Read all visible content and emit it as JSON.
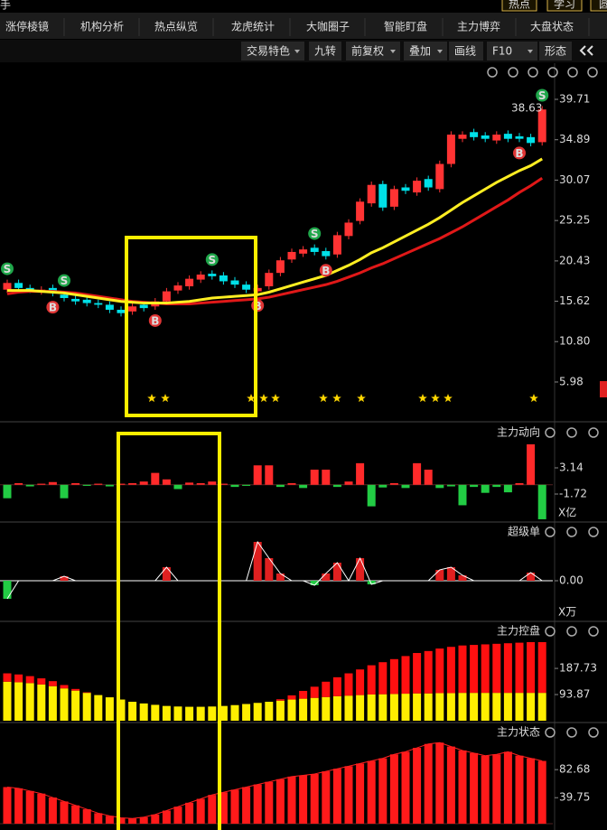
{
  "header": {
    "corner": "手",
    "buttons": [
      "热点",
      "学习",
      "圆"
    ],
    "tabs": [
      "涨停棱镜",
      "机构分析",
      "热点纵览",
      "龙虎统计",
      "大咖圈子",
      "智能盯盘",
      "主力博弈",
      "大盘状态"
    ]
  },
  "toolbar": {
    "items": [
      "交易特色",
      "九转",
      "前复权",
      "叠加",
      "画线",
      "F10",
      "形态"
    ]
  },
  "chart_data": [
    {
      "type": "candlestick",
      "up_color": "#ff3333",
      "down_color": "#00e0e8",
      "open": [
        17.0,
        17.8,
        17.2,
        16.8,
        17.2,
        16.4,
        15.9,
        15.8,
        15.4,
        15.2,
        14.6,
        14.4,
        15.2,
        15.0,
        15.6,
        16.9,
        17.4,
        18.2,
        18.9,
        18.7,
        18.1,
        17.6,
        16.8,
        17.4,
        19.0,
        20.6,
        21.3,
        22.0,
        21.6,
        21.2,
        23.4,
        25.2,
        27.3,
        29.6,
        26.9,
        29.2,
        28.6,
        30.2,
        29.0,
        32.0,
        35.0,
        35.8,
        35.4,
        34.8,
        35.6,
        35.3,
        35.2,
        34.6
      ],
      "high": [
        18.2,
        18.2,
        17.6,
        17.4,
        17.6,
        16.8,
        16.3,
        16.2,
        15.8,
        15.6,
        15.0,
        15.4,
        15.6,
        16.0,
        17.2,
        17.9,
        18.7,
        19.2,
        19.3,
        19.1,
        18.5,
        18.0,
        17.6,
        19.4,
        20.9,
        21.9,
        22.2,
        22.4,
        22.0,
        23.9,
        25.4,
        27.9,
        29.9,
        30.0,
        29.4,
        29.6,
        30.4,
        30.6,
        32.4,
        35.9,
        35.9,
        36.2,
        35.8,
        35.9,
        36.0,
        35.7,
        35.6,
        38.9
      ],
      "low": [
        16.6,
        16.8,
        16.6,
        16.4,
        16.2,
        15.6,
        15.2,
        15.0,
        14.8,
        14.2,
        13.8,
        14.0,
        14.4,
        14.6,
        15.2,
        16.5,
        17.0,
        17.8,
        18.2,
        17.6,
        17.2,
        16.6,
        16.4,
        17.0,
        18.6,
        20.2,
        20.9,
        21.1,
        20.6,
        20.8,
        23.0,
        24.8,
        26.9,
        26.4,
        26.5,
        28.4,
        28.2,
        28.8,
        28.6,
        31.6,
        34.6,
        34.8,
        34.6,
        34.4,
        34.6,
        34.6,
        34.1,
        34.2
      ],
      "close": [
        17.8,
        17.2,
        17.0,
        17.0,
        16.6,
        16.0,
        15.6,
        15.4,
        15.2,
        14.6,
        14.2,
        15.0,
        14.8,
        15.6,
        16.8,
        17.5,
        18.3,
        18.8,
        18.6,
        18.0,
        17.6,
        17.0,
        17.2,
        19.0,
        20.5,
        21.5,
        21.8,
        21.5,
        21.0,
        23.5,
        25.0,
        27.5,
        29.5,
        26.8,
        29.0,
        28.8,
        30.0,
        29.2,
        32.0,
        35.5,
        35.5,
        35.2,
        35.0,
        35.5,
        35.0,
        35.0,
        34.5,
        38.5
      ],
      "series": [
        {
          "color": "#e01818",
          "values": [
            16.5,
            16.7,
            16.8,
            16.8,
            16.8,
            16.7,
            16.6,
            16.4,
            16.2,
            16.0,
            15.8,
            15.6,
            15.5,
            15.4,
            15.3,
            15.3,
            15.3,
            15.4,
            15.5,
            15.6,
            15.7,
            15.8,
            15.9,
            16.1,
            16.4,
            16.7,
            17.0,
            17.3,
            17.6,
            18.0,
            18.5,
            19.0,
            19.6,
            20.1,
            20.7,
            21.3,
            21.9,
            22.5,
            23.1,
            23.8,
            24.5,
            25.3,
            26.1,
            26.9,
            27.7,
            28.6,
            29.4,
            30.3
          ]
        },
        {
          "color": "#ffee22",
          "values": [
            16.9,
            16.9,
            16.9,
            16.8,
            16.7,
            16.6,
            16.4,
            16.2,
            16.0,
            15.8,
            15.6,
            15.5,
            15.4,
            15.4,
            15.4,
            15.5,
            15.6,
            15.8,
            16.0,
            16.1,
            16.2,
            16.3,
            16.4,
            16.7,
            17.1,
            17.5,
            17.9,
            18.3,
            18.7,
            19.3,
            19.9,
            20.6,
            21.4,
            22.0,
            22.7,
            23.4,
            24.1,
            24.8,
            25.6,
            26.5,
            27.4,
            28.2,
            29.0,
            29.8,
            30.5,
            31.2,
            31.8,
            32.6
          ]
        }
      ],
      "signals": [
        {
          "index": 0,
          "label": "S"
        },
        {
          "index": 4,
          "label": "B"
        },
        {
          "index": 5,
          "label": "S"
        },
        {
          "index": 13,
          "label": "B"
        },
        {
          "index": 18,
          "label": "S"
        },
        {
          "index": 22,
          "label": "B"
        },
        {
          "index": 27,
          "label": "S"
        },
        {
          "index": 28,
          "label": "B"
        },
        {
          "index": 45,
          "label": "B"
        },
        {
          "index": 47,
          "label": "S"
        }
      ],
      "annotations": [
        {
          "text": "38.63"
        }
      ],
      "ylim": [
        1.45,
        44.02
      ],
      "yticks": [
        39.71,
        34.89,
        30.07,
        25.25,
        20.43,
        15.62,
        {
          "value": 10.8,
          "label": "10.80"
        },
        5.98
      ]
    },
    {
      "type": "bar",
      "title": "主力动向",
      "unit": "X亿",
      "up_color": "#ff2a2a",
      "down_color": "#22cc44",
      "values": [
        -2.5,
        0.3,
        -0.3,
        0.2,
        0.5,
        -2.5,
        0.3,
        -0.2,
        0.2,
        -0.3,
        0.2,
        0.3,
        0.6,
        2.2,
        1.0,
        -0.8,
        0.4,
        0.3,
        0.6,
        0.2,
        -0.4,
        -0.2,
        3.6,
        3.6,
        -0.4,
        0.3,
        -0.6,
        2.8,
        2.8,
        -0.4,
        0.6,
        4.0,
        -4.0,
        -0.5,
        0.3,
        -0.6,
        4.0,
        2.8,
        -0.6,
        -0.3,
        -3.8,
        -0.4,
        -1.5,
        -0.4,
        -1.4,
        0.3,
        7.5,
        -6.4
      ],
      "ylim": [
        -6.91,
        11.18
      ],
      "yticks": [
        3.14,
        -1.72
      ]
    },
    {
      "type": "bar",
      "title": "超级单",
      "unit": "X万",
      "up_color": "#e02020",
      "down_color": "#22cc44",
      "line_color": "#ffffff",
      "values": [
        -2.0,
        0,
        0,
        0,
        0,
        0.5,
        0,
        0,
        0,
        0,
        0,
        0,
        0,
        0,
        1.5,
        0,
        0,
        0,
        0,
        0,
        0,
        0,
        4.3,
        2.5,
        0.8,
        0,
        0,
        -0.5,
        0.8,
        2.0,
        0,
        2.5,
        -0.4,
        0,
        0,
        0,
        0,
        0,
        1.2,
        1.5,
        0.6,
        0,
        0,
        0,
        0,
        0,
        0.9,
        0
      ],
      "ylim": [
        -4.5,
        6.3
      ],
      "yticks": [
        {
          "value": 0,
          "label": "0.00"
        }
      ]
    },
    {
      "type": "stacked_bar",
      "title": "主力控盘",
      "series": [
        {
          "color": "#ffee00",
          "values": [
            140,
            138,
            135,
            130,
            124,
            116,
            108,
            100,
            92,
            84,
            76,
            68,
            62,
            57,
            53,
            51,
            50,
            50,
            51,
            53,
            56,
            60,
            64,
            68,
            72,
            76,
            79,
            82,
            85,
            88,
            90,
            92,
            94,
            95,
            96,
            97,
            98,
            98,
            99,
            99,
            100,
            100,
            100,
            100,
            100,
            100,
            100,
            100
          ]
        },
        {
          "color": "#ff1010",
          "values": [
            30,
            28,
            25,
            22,
            18,
            12,
            6,
            2,
            0,
            0,
            0,
            0,
            0,
            0,
            0,
            0,
            0,
            0,
            0,
            0,
            0,
            0,
            0,
            0,
            5,
            15,
            28,
            40,
            55,
            68,
            80,
            92,
            105,
            115,
            125,
            135,
            145,
            152,
            160,
            166,
            170,
            172,
            174,
            176,
            178,
            180,
            182,
            182
          ]
        }
      ],
      "ylim": [
        0,
        350
      ],
      "yticks": [
        187.73,
        93.87
      ]
    },
    {
      "type": "bar",
      "title": "主力状态",
      "up_color": "#ff1a1a",
      "down_color": "#22cc44",
      "line_color": "#ff2020",
      "values": [
        56,
        54,
        50,
        46,
        40,
        34,
        28,
        22,
        16,
        12,
        9,
        8,
        10,
        14,
        20,
        26,
        32,
        38,
        44,
        48,
        52,
        56,
        60,
        64,
        68,
        72,
        74,
        76,
        80,
        84,
        88,
        92,
        96,
        100,
        106,
        110,
        116,
        122,
        124,
        118,
        112,
        108,
        104,
        106,
        110,
        104,
        100,
        96
      ],
      "ylim": [
        0,
        152
      ],
      "yticks": [
        82.68,
        39.75
      ]
    }
  ]
}
